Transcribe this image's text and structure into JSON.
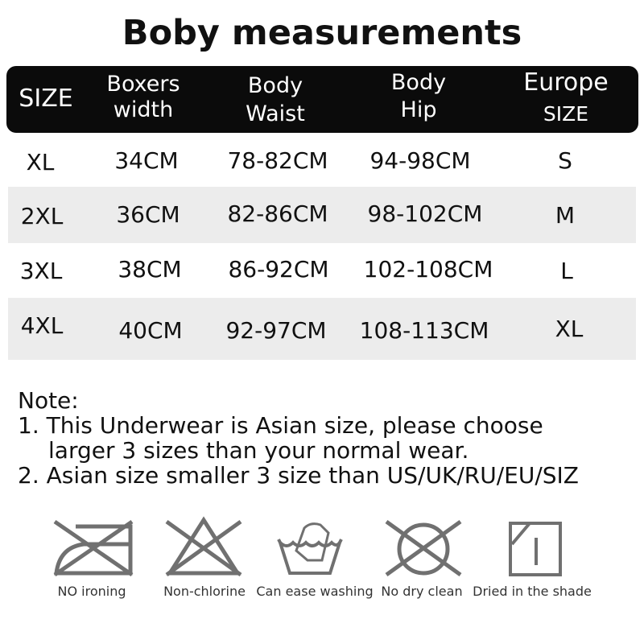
{
  "title": "Boby measurements",
  "table": {
    "headers": [
      [
        "SIZE",
        ""
      ],
      [
        "Boxers",
        "width"
      ],
      [
        "Body",
        "Waist"
      ],
      [
        "Body",
        "Hip"
      ],
      [
        "Europe",
        "SIZE"
      ]
    ],
    "rows": [
      [
        "XL",
        "34CM",
        "78-82CM",
        "94-98CM",
        "S"
      ],
      [
        "2XL",
        "36CM",
        "82-86CM",
        "98-102CM",
        "M"
      ],
      [
        "3XL",
        "38CM",
        "86-92CM",
        "102-108CM",
        "L"
      ],
      [
        "4XL",
        "40CM",
        "92-97CM",
        "108-113CM",
        "XL"
      ]
    ]
  },
  "notes": {
    "heading": "Note:",
    "line1": "1. This Underwear is Asian size, please choose",
    "line1b": "larger 3 sizes than your normal wear.",
    "line2": "2. Asian size smaller 3 size than US/UK/RU/EU/SIZ"
  },
  "care": [
    {
      "icon": "no-ironing-icon",
      "label": "NO ironing"
    },
    {
      "icon": "non-chlorine-icon",
      "label": "Non-chlorine"
    },
    {
      "icon": "hand-wash-icon",
      "label": "Can ease washing"
    },
    {
      "icon": "no-dry-clean-icon",
      "label": "No dry clean"
    },
    {
      "icon": "dry-in-shade-icon",
      "label": "Dried in the shade"
    }
  ],
  "colors": {
    "header": "#0b0b0b",
    "stripe": "#ececec",
    "icon": "#707070"
  }
}
